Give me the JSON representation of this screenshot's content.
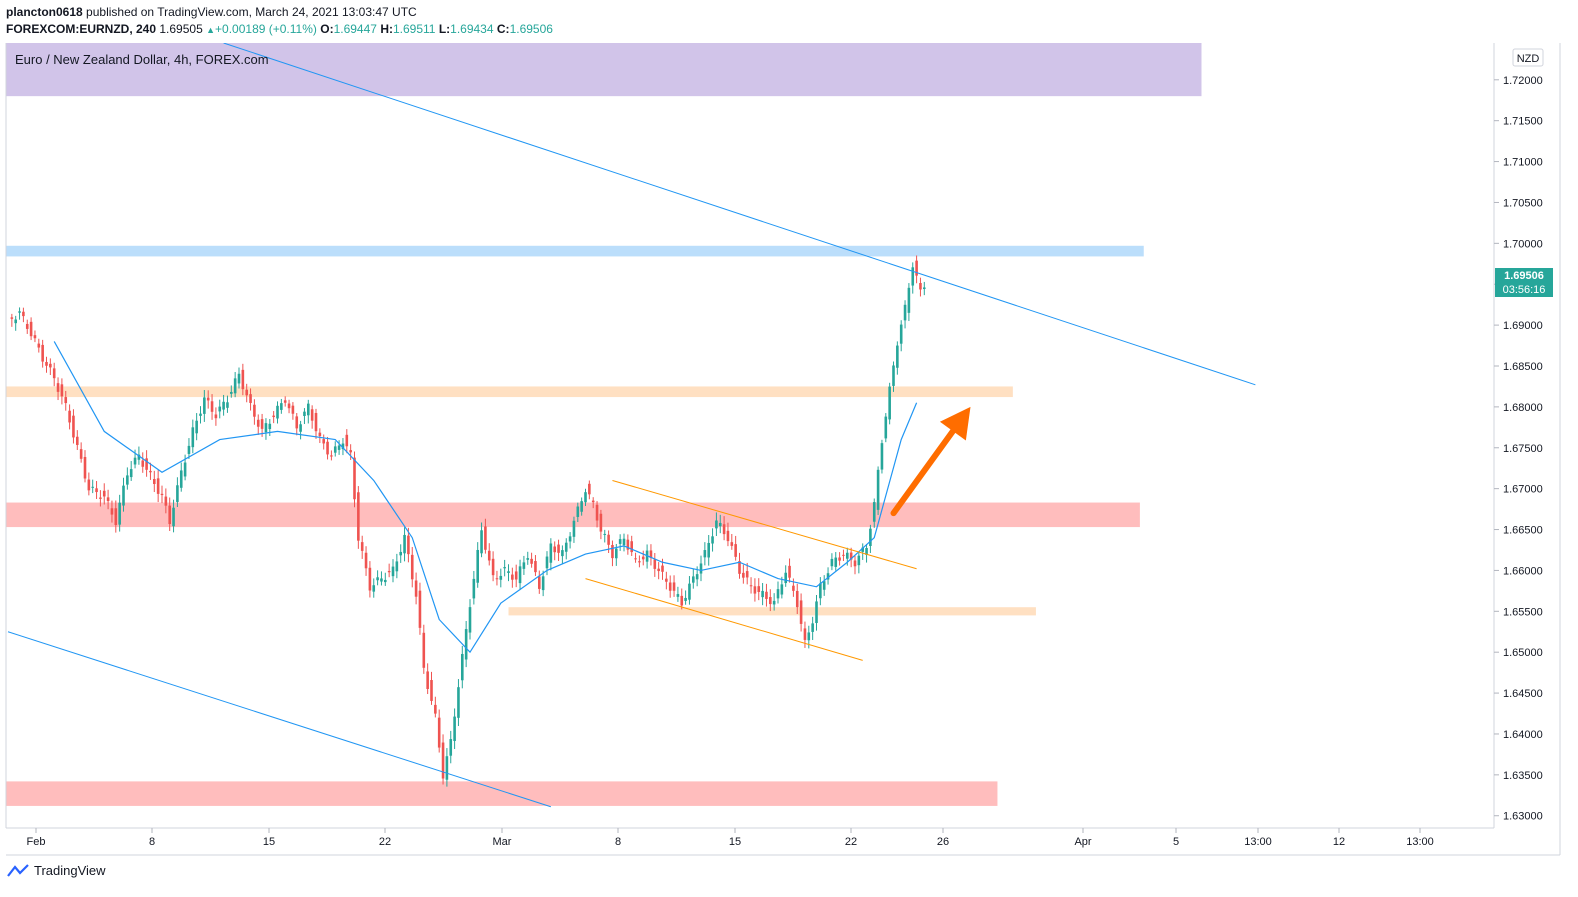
{
  "header": {
    "user": "plancton0618",
    "published_text": "published on TradingView.com, March 24, 2021 13:03:47 UTC",
    "symbol": "FOREXCOM:EURNZD, 240",
    "last_price": "1.69505",
    "change": "+0.00189 (+0.11%)",
    "o_label": "O:",
    "o_value": "1.69447",
    "h_label": "H:",
    "h_value": "1.69511",
    "l_label": "L:",
    "l_value": "1.69434",
    "c_label": "C:",
    "c_value": "1.69506"
  },
  "footer": {
    "brand": "TradingView",
    "logo_icon": "tradingview-logo-icon"
  },
  "colors": {
    "up": "#26a69a",
    "down": "#ef5350",
    "ma": "#2196f3",
    "trend": "#2196f3",
    "channel": "#ff9800",
    "arrow": "#ff6d00",
    "label_bg": "#26a69a"
  },
  "chart_data": {
    "type": "candlestick",
    "title": "Euro / New Zealand Dollar, 4h, FOREX.com",
    "currency": "NZD",
    "x_tick_labels": [
      "Feb",
      "8",
      "15",
      "22",
      "Mar",
      "8",
      "15",
      "22",
      "26",
      "Apr",
      "5",
      "13:00",
      "12",
      "13:00"
    ],
    "y_tick_labels": [
      "1.72000",
      "1.71500",
      "1.71000",
      "1.70500",
      "1.70000",
      "1.69500",
      "1.69000",
      "1.68500",
      "1.68000",
      "1.67500",
      "1.67000",
      "1.66500",
      "1.66000",
      "1.65500",
      "1.65000",
      "1.64500",
      "1.64000",
      "1.63500",
      "1.63000"
    ],
    "ylim": [
      1.6285,
      1.7245
    ],
    "current_price": {
      "value": "1.69506",
      "countdown": "03:56:16"
    },
    "price_path": [
      [
        0,
        1.6905
      ],
      [
        3,
        1.6915
      ],
      [
        6,
        1.689
      ],
      [
        9,
        1.686
      ],
      [
        12,
        1.6835
      ],
      [
        15,
        1.68
      ],
      [
        18,
        1.675
      ],
      [
        21,
        1.67
      ],
      [
        25,
        1.669
      ],
      [
        28,
        1.666
      ],
      [
        31,
        1.672
      ],
      [
        34,
        1.674
      ],
      [
        37,
        1.6715
      ],
      [
        40,
        1.669
      ],
      [
        42,
        1.666
      ],
      [
        45,
        1.672
      ],
      [
        48,
        1.677
      ],
      [
        51,
        1.681
      ],
      [
        54,
        1.679
      ],
      [
        57,
        1.681
      ],
      [
        60,
        1.684
      ],
      [
        63,
        1.68
      ],
      [
        66,
        1.677
      ],
      [
        69,
        1.679
      ],
      [
        72,
        1.681
      ],
      [
        75,
        1.6775
      ],
      [
        78,
        1.68
      ],
      [
        81,
        1.676
      ],
      [
        84,
        1.674
      ],
      [
        87,
        1.676
      ],
      [
        89,
        1.674
      ],
      [
        91,
        1.664
      ],
      [
        94,
        1.658
      ],
      [
        97,
        1.659
      ],
      [
        100,
        1.66
      ],
      [
        103,
        1.664
      ],
      [
        106,
        1.657
      ],
      [
        108,
        1.648
      ],
      [
        111,
        1.642
      ],
      [
        113,
        1.635
      ],
      [
        115,
        1.639
      ],
      [
        117,
        1.646
      ],
      [
        120,
        1.656
      ],
      [
        123,
        1.665
      ],
      [
        126,
        1.659
      ],
      [
        129,
        1.66
      ],
      [
        132,
        1.659
      ],
      [
        135,
        1.662
      ],
      [
        138,
        1.658
      ],
      [
        141,
        1.663
      ],
      [
        144,
        1.662
      ],
      [
        147,
        1.666
      ],
      [
        150,
        1.67
      ],
      [
        152,
        1.668
      ],
      [
        154,
        1.665
      ],
      [
        157,
        1.662
      ],
      [
        160,
        1.664
      ],
      [
        163,
        1.661
      ],
      [
        166,
        1.662
      ],
      [
        169,
        1.66
      ],
      [
        172,
        1.658
      ],
      [
        175,
        1.656
      ],
      [
        178,
        1.659
      ],
      [
        181,
        1.662
      ],
      [
        184,
        1.666
      ],
      [
        187,
        1.664
      ],
      [
        190,
        1.66
      ],
      [
        193,
        1.658
      ],
      [
        196,
        1.657
      ],
      [
        199,
        1.656
      ],
      [
        202,
        1.66
      ],
      [
        205,
        1.656
      ],
      [
        207,
        1.651
      ],
      [
        209,
        1.654
      ],
      [
        211,
        1.658
      ],
      [
        214,
        1.661
      ],
      [
        217,
        1.662
      ],
      [
        220,
        1.661
      ],
      [
        223,
        1.663
      ],
      [
        225,
        1.668
      ],
      [
        227,
        1.676
      ],
      [
        229,
        1.682
      ],
      [
        231,
        1.688
      ],
      [
        233,
        1.692
      ],
      [
        235,
        1.6975
      ],
      [
        237,
        1.694
      ],
      [
        238,
        1.695
      ]
    ],
    "moving_average_path": [
      [
        12,
        1.688
      ],
      [
        25,
        1.677
      ],
      [
        40,
        1.672
      ],
      [
        55,
        1.676
      ],
      [
        70,
        1.677
      ],
      [
        85,
        1.676
      ],
      [
        95,
        1.671
      ],
      [
        105,
        1.664
      ],
      [
        112,
        1.654
      ],
      [
        120,
        1.65
      ],
      [
        128,
        1.656
      ],
      [
        140,
        1.66
      ],
      [
        150,
        1.662
      ],
      [
        160,
        1.663
      ],
      [
        170,
        1.661
      ],
      [
        180,
        1.66
      ],
      [
        190,
        1.661
      ],
      [
        200,
        1.659
      ],
      [
        210,
        1.658
      ],
      [
        218,
        1.661
      ],
      [
        225,
        1.664
      ],
      [
        232,
        1.676
      ],
      [
        236,
        1.6805
      ]
    ],
    "zones": [
      {
        "type": "resistance",
        "ymin": 1.718,
        "ymax": 1.7245,
        "x_end": 310,
        "color": "#d1c4e9"
      },
      {
        "type": "resistance",
        "ymin": 1.6984,
        "ymax": 1.6997,
        "x_end": 295,
        "color": "#bbdefb"
      },
      {
        "type": "support-resistance",
        "ymin": 1.6812,
        "ymax": 1.6825,
        "x_end": 261,
        "color": "#ffe0c2"
      },
      {
        "type": "support",
        "ymin": 1.6653,
        "ymax": 1.6683,
        "x_end": 294,
        "color": "#ffbdbd"
      },
      {
        "type": "support",
        "ymin": 1.6545,
        "ymax": 1.6555,
        "x_start": 130,
        "x_end": 267,
        "color": "#ffe0c2"
      },
      {
        "type": "support",
        "ymin": 1.6312,
        "ymax": 1.6342,
        "x_end": 257,
        "color": "#ffbdbd"
      }
    ],
    "trendlines": [
      {
        "name": "upper",
        "points": [
          [
            56,
            1.7245
          ],
          [
            324,
            1.6827
          ]
        ]
      },
      {
        "name": "lower",
        "points": [
          [
            0,
            1.6525
          ],
          [
            141,
            1.6311
          ]
        ]
      }
    ],
    "channel_lines": [
      {
        "name": "upper",
        "points": [
          [
            157,
            1.671
          ],
          [
            236,
            1.6602
          ]
        ]
      },
      {
        "name": "lower",
        "points": [
          [
            150,
            1.659
          ],
          [
            222,
            1.649
          ]
        ]
      }
    ],
    "arrow": {
      "from": [
        230,
        1.667
      ],
      "to": [
        250,
        1.68
      ]
    }
  }
}
